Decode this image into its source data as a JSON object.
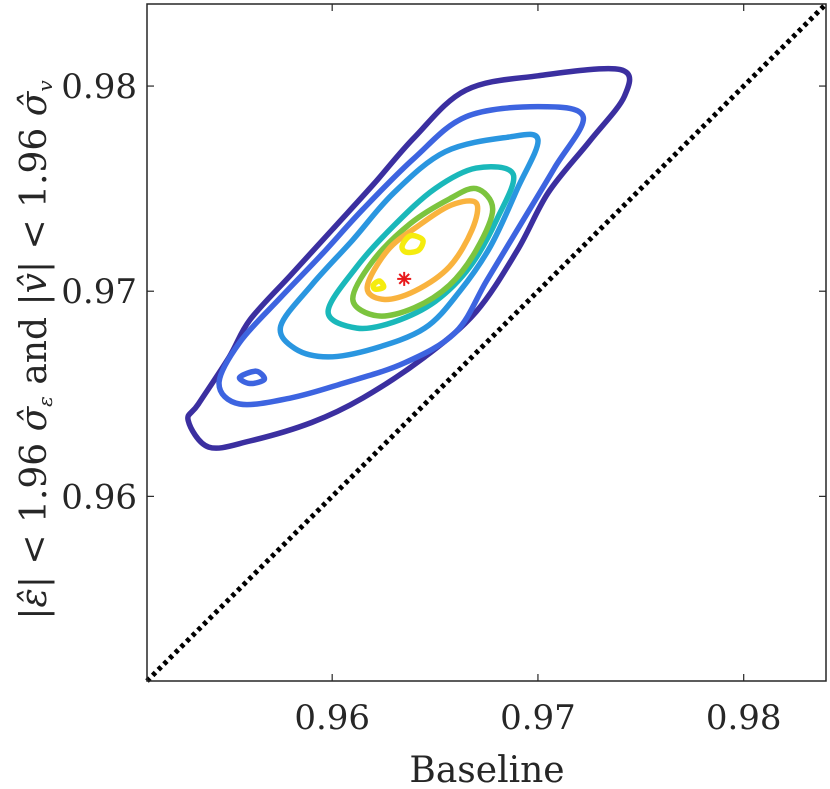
{
  "chart_data": {
    "type": "contour",
    "title": "",
    "xlabel": "Baseline",
    "ylabel_parts": {
      "p1": "|",
      "eps": "ε̂",
      "p2": "| < 1.96 ",
      "sigma1": "σ̂",
      "sub1": "ε",
      "p3": " and |",
      "v": "v̂",
      "p4": "| < 1.96 ",
      "sigma2": "σ̂",
      "sub2": "v"
    },
    "xlim": [
      0.951,
      0.984
    ],
    "ylim": [
      0.951,
      0.984
    ],
    "xticks": [
      0.96,
      0.97,
      0.98
    ],
    "yticks": [
      0.96,
      0.97,
      0.98
    ],
    "xtick_labels": [
      "0.96",
      "0.97",
      "0.98"
    ],
    "ytick_labels": [
      "0.96",
      "0.97",
      "0.98"
    ],
    "grid": false,
    "reference_line": {
      "style": "dotted",
      "color": "#000000",
      "points": [
        [
          0.951,
          0.951
        ],
        [
          0.984,
          0.984
        ]
      ]
    },
    "point_estimate": {
      "x": 0.9635,
      "y": 0.9706,
      "marker": "*",
      "color": "#e8191b"
    },
    "contours": [
      {
        "level": 1,
        "color": "#3b2fa0",
        "points": [
          [
            0.9535,
            0.9645
          ],
          [
            0.955,
            0.9668
          ],
          [
            0.956,
            0.9686
          ],
          [
            0.958,
            0.9708
          ],
          [
            0.96,
            0.973
          ],
          [
            0.962,
            0.9752
          ],
          [
            0.964,
            0.9775
          ],
          [
            0.9665,
            0.9798
          ],
          [
            0.97,
            0.9805
          ],
          [
            0.974,
            0.9808
          ],
          [
            0.9742,
            0.9795
          ],
          [
            0.9725,
            0.9773
          ],
          [
            0.9705,
            0.9748
          ],
          [
            0.969,
            0.972
          ],
          [
            0.967,
            0.969
          ],
          [
            0.9645,
            0.9668
          ],
          [
            0.9615,
            0.9648
          ],
          [
            0.959,
            0.9636
          ],
          [
            0.956,
            0.9627
          ],
          [
            0.954,
            0.9624
          ],
          [
            0.953,
            0.9637
          ]
        ]
      },
      {
        "level": 2,
        "color": "#3d64e0",
        "points": [
          [
            0.9545,
            0.9655
          ],
          [
            0.9555,
            0.9675
          ],
          [
            0.9575,
            0.9697
          ],
          [
            0.9595,
            0.9718
          ],
          [
            0.9615,
            0.974
          ],
          [
            0.964,
            0.9765
          ],
          [
            0.9665,
            0.9785
          ],
          [
            0.97,
            0.979
          ],
          [
            0.9722,
            0.9785
          ],
          [
            0.9708,
            0.976
          ],
          [
            0.969,
            0.973
          ],
          [
            0.9675,
            0.9705
          ],
          [
            0.966,
            0.968
          ],
          [
            0.9635,
            0.9665
          ],
          [
            0.9605,
            0.9655
          ],
          [
            0.958,
            0.9648
          ],
          [
            0.9555,
            0.9645
          ]
        ]
      },
      {
        "level": 3,
        "color": "#2a96e0",
        "points": [
          [
            0.9575,
            0.9683
          ],
          [
            0.959,
            0.9703
          ],
          [
            0.961,
            0.9725
          ],
          [
            0.963,
            0.9748
          ],
          [
            0.9655,
            0.9768
          ],
          [
            0.9685,
            0.9775
          ],
          [
            0.97,
            0.9774
          ],
          [
            0.969,
            0.975
          ],
          [
            0.9677,
            0.9722
          ],
          [
            0.9662,
            0.97
          ],
          [
            0.9645,
            0.9682
          ],
          [
            0.962,
            0.9672
          ],
          [
            0.9598,
            0.9668
          ],
          [
            0.9582,
            0.9672
          ]
        ]
      },
      {
        "level": 4,
        "color": "#1ab8ba",
        "points": [
          [
            0.9598,
            0.969
          ],
          [
            0.9612,
            0.9712
          ],
          [
            0.963,
            0.9732
          ],
          [
            0.965,
            0.975
          ],
          [
            0.967,
            0.976
          ],
          [
            0.9688,
            0.9757
          ],
          [
            0.968,
            0.9735
          ],
          [
            0.9667,
            0.9712
          ],
          [
            0.965,
            0.9695
          ],
          [
            0.963,
            0.9685
          ],
          [
            0.9612,
            0.9682
          ]
        ]
      },
      {
        "level": 5,
        "color": "#7cc43e",
        "points": [
          [
            0.961,
            0.9696
          ],
          [
            0.962,
            0.9715
          ],
          [
            0.9638,
            0.9733
          ],
          [
            0.9657,
            0.9745
          ],
          [
            0.967,
            0.975
          ],
          [
            0.9678,
            0.974
          ],
          [
            0.967,
            0.972
          ],
          [
            0.9657,
            0.9703
          ],
          [
            0.964,
            0.9692
          ],
          [
            0.9622,
            0.9688
          ]
        ]
      },
      {
        "level": 6,
        "color": "#f9b33e",
        "points": [
          [
            0.9617,
            0.9702
          ],
          [
            0.9627,
            0.972
          ],
          [
            0.9642,
            0.9732
          ],
          [
            0.9658,
            0.9742
          ],
          [
            0.967,
            0.9743
          ],
          [
            0.9668,
            0.973
          ],
          [
            0.9657,
            0.9712
          ],
          [
            0.964,
            0.97
          ],
          [
            0.9625,
            0.9696
          ]
        ]
      },
      {
        "level": 7,
        "color": "#f5ec0e",
        "points": [
          [
            0.9634,
            0.9722
          ],
          [
            0.9638,
            0.9727
          ],
          [
            0.9644,
            0.9725
          ],
          [
            0.9642,
            0.972
          ],
          [
            0.9636,
            0.9719
          ]
        ]
      },
      {
        "level": 7,
        "color": "#f5ec0e",
        "points": [
          [
            0.962,
            0.9703
          ],
          [
            0.9623,
            0.9705
          ],
          [
            0.9625,
            0.9702
          ],
          [
            0.9621,
            0.9701
          ]
        ]
      },
      {
        "level": 2,
        "color": "#3d64e0",
        "points": [
          [
            0.9555,
            0.9658
          ],
          [
            0.9563,
            0.9661
          ],
          [
            0.9567,
            0.9657
          ],
          [
            0.956,
            0.9655
          ]
        ]
      }
    ]
  }
}
